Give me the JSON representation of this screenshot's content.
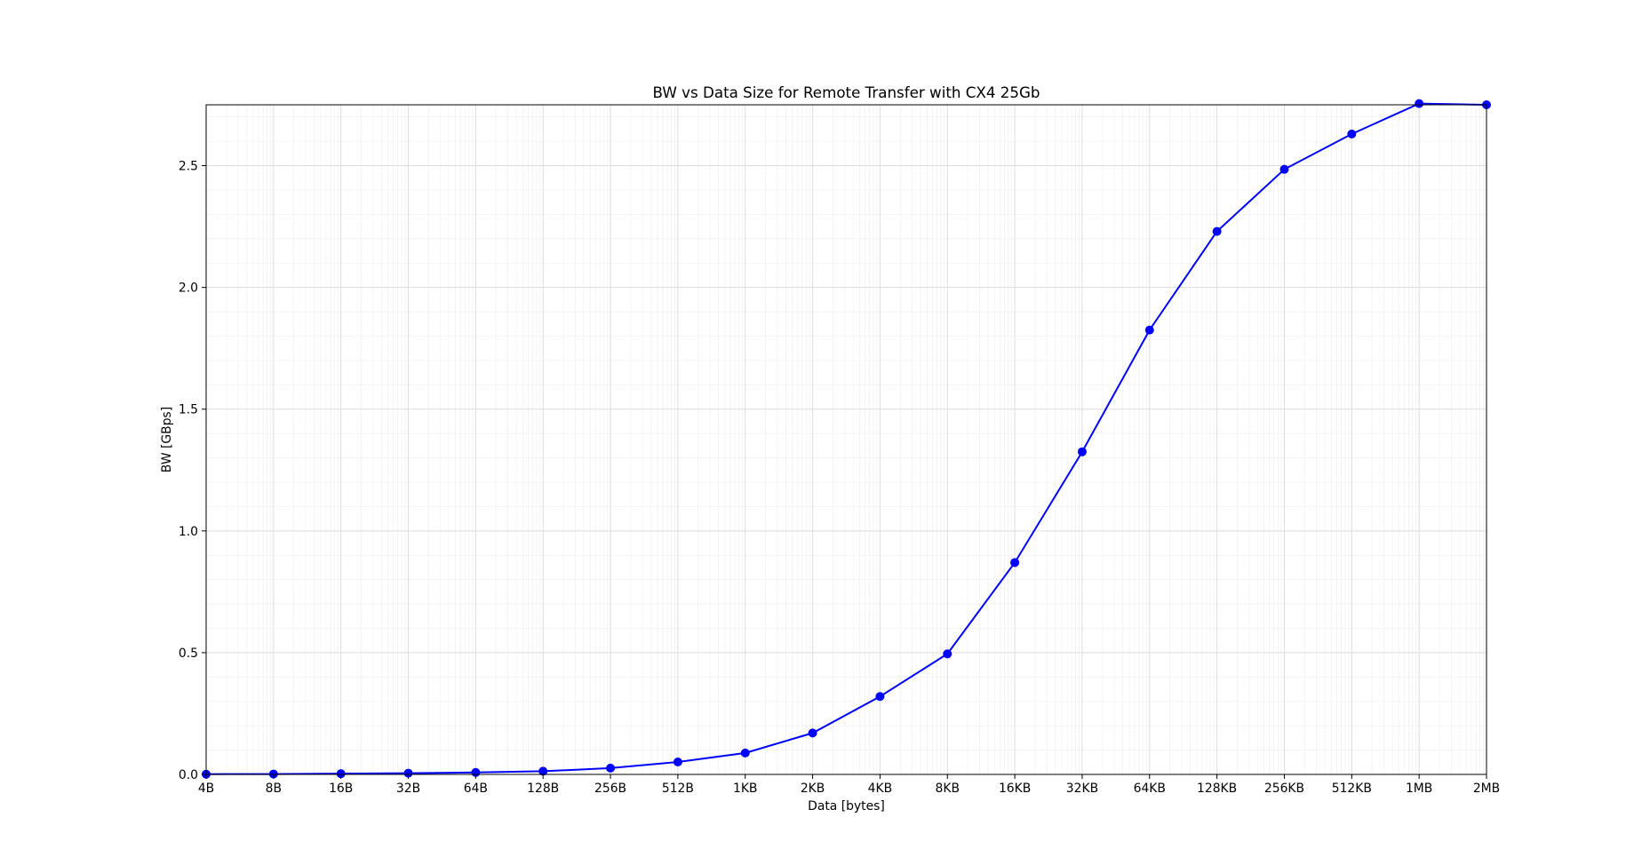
{
  "chart_data": {
    "type": "line",
    "title": "BW vs Data Size for Remote Transfer with CX4 25Gb",
    "xlabel": "Data [bytes]",
    "ylabel": "BW [GBps]",
    "x_scale": "log2",
    "categories": [
      "4B",
      "8B",
      "16B",
      "32B",
      "64B",
      "128B",
      "256B",
      "512B",
      "1KB",
      "2KB",
      "4KB",
      "8KB",
      "16KB",
      "32KB",
      "64KB",
      "128KB",
      "256KB",
      "512KB",
      "1MB",
      "2MB"
    ],
    "x": [
      4,
      8,
      16,
      32,
      64,
      128,
      256,
      512,
      1024,
      2048,
      4096,
      8192,
      16384,
      32768,
      65536,
      131072,
      262144,
      524288,
      1048576,
      2097152
    ],
    "series": [
      {
        "color": "#0000ff",
        "marker": "circle",
        "values": [
          0.001,
          0.0015,
          0.003,
          0.005,
          0.008,
          0.013,
          0.026,
          0.051,
          0.088,
          0.17,
          0.32,
          0.495,
          0.87,
          1.325,
          1.825,
          2.23,
          2.485,
          2.63,
          2.755,
          2.75
        ]
      }
    ],
    "yticks": [
      "0.0",
      "0.5",
      "1.0",
      "1.5",
      "2.0",
      "2.5"
    ],
    "ylim": [
      0,
      2.75
    ],
    "grid": true,
    "minor_grid": true,
    "legend": "none"
  }
}
